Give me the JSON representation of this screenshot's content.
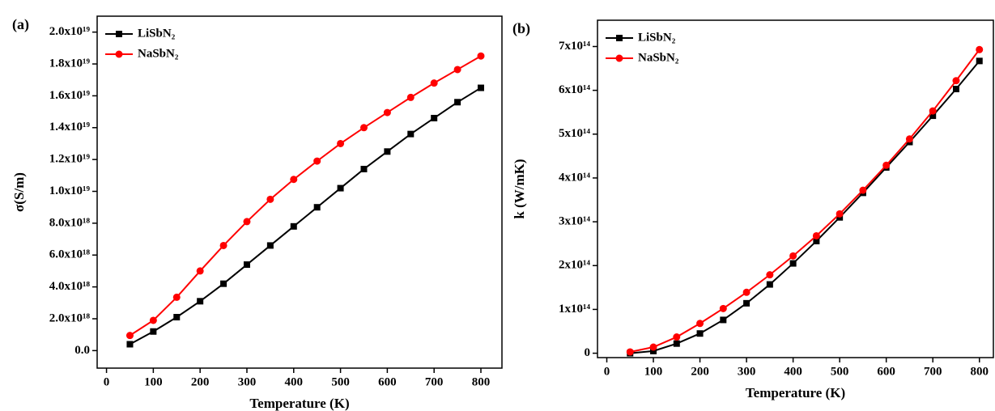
{
  "chart_data": [
    {
      "type": "line",
      "label": "(a)",
      "xlabel": "Temperature (K)",
      "ylabel": "σ(S/m)",
      "x": [
        50,
        100,
        150,
        200,
        250,
        300,
        350,
        400,
        450,
        500,
        550,
        600,
        650,
        700,
        750,
        800
      ],
      "series": [
        {
          "name": "LiSbN₂",
          "color": "#000000",
          "marker": "square",
          "values": [
            4e+17,
            1.2e+18,
            2.1e+18,
            3.1e+18,
            4.2e+18,
            5.4e+18,
            6.6e+18,
            7.8e+18,
            9e+18,
            1.02e+19,
            1.14e+19,
            1.25e+19,
            1.36e+19,
            1.46e+19,
            1.56e+19,
            1.65e+19
          ]
        },
        {
          "name": "NaSbN₂",
          "color": "#ff0000",
          "marker": "circle",
          "values": [
            9.5e+17,
            1.9e+18,
            3.35e+18,
            5e+18,
            6.6e+18,
            8.1e+18,
            9.5e+18,
            1.075e+19,
            1.19e+19,
            1.3e+19,
            1.4e+19,
            1.495e+19,
            1.59e+19,
            1.68e+19,
            1.765e+19,
            1.85e+19
          ]
        }
      ],
      "xlim": [
        -20,
        845
      ],
      "xticks": [
        0,
        100,
        200,
        300,
        400,
        500,
        600,
        700,
        800
      ],
      "ylim": [
        -1.1e+18,
        2.1e+19
      ],
      "yticks": [
        {
          "value": 0,
          "label": "0.0"
        },
        {
          "value": 2e+18,
          "label": "2.0x10¹⁸"
        },
        {
          "value": 4e+18,
          "label": "4.0x10¹⁸"
        },
        {
          "value": 6e+18,
          "label": "6.0x10¹⁸"
        },
        {
          "value": 8e+18,
          "label": "8.0x10¹⁸"
        },
        {
          "value": 1e+19,
          "label": "1.0x10¹⁹"
        },
        {
          "value": 1.2e+19,
          "label": "1.2x10¹⁹"
        },
        {
          "value": 1.4e+19,
          "label": "1.4x10¹⁹"
        },
        {
          "value": 1.6e+19,
          "label": "1.6x10¹⁹"
        },
        {
          "value": 1.8e+19,
          "label": "1.8x10¹⁹"
        },
        {
          "value": 2e+19,
          "label": "2.0x10¹⁹"
        }
      ],
      "legend": "upper left"
    },
    {
      "type": "line",
      "label": "(b)",
      "xlabel": "Temperature (K)",
      "ylabel": "k (W/mK)",
      "x": [
        50,
        100,
        150,
        200,
        250,
        300,
        350,
        400,
        450,
        500,
        550,
        600,
        650,
        700,
        750,
        800
      ],
      "series": [
        {
          "name": "LiSbN₂",
          "color": "#000000",
          "marker": "square",
          "values": [
            0,
            5000000000000.0,
            22000000000000.0,
            45000000000000.0,
            76000000000000.0,
            114000000000000.0,
            157000000000000.0,
            205000000000000.0,
            256000000000000.0,
            310000000000000.0,
            366000000000000.0,
            424000000000000.0,
            482000000000000.0,
            542000000000000.0,
            603000000000000.0,
            667000000000000.0
          ]
        },
        {
          "name": "NaSbN₂",
          "color": "#ff0000",
          "marker": "circle",
          "values": [
            3000000000000.0,
            14000000000000.0,
            37000000000000.0,
            68000000000000.0,
            102000000000000.0,
            139000000000000.0,
            179000000000000.0,
            222000000000000.0,
            268000000000000.0,
            318000000000000.0,
            372000000000000.0,
            429000000000000.0,
            489000000000000.0,
            553000000000000.0,
            622000000000000.0,
            693000000000000.0
          ]
        }
      ],
      "xlim": [
        -20,
        830
      ],
      "xticks": [
        0,
        100,
        200,
        300,
        400,
        500,
        600,
        700,
        800
      ],
      "ylim": [
        -10000000000000.0,
        760000000000000.0
      ],
      "yticks": [
        0,
        {
          "value": 100000000000000.0,
          "label": "1x10¹⁴"
        },
        {
          "value": 200000000000000.0,
          "label": "2x10¹⁴"
        },
        {
          "value": 300000000000000.0,
          "label": "3x10¹⁴"
        },
        {
          "value": 400000000000000.0,
          "label": "4x10¹⁴"
        },
        {
          "value": 500000000000000.0,
          "label": "5x10¹⁴"
        },
        {
          "value": 600000000000000.0,
          "label": "6x10¹⁴"
        },
        {
          "value": 700000000000000.0,
          "label": "7x10¹⁴"
        }
      ],
      "legend": "upper left"
    }
  ]
}
